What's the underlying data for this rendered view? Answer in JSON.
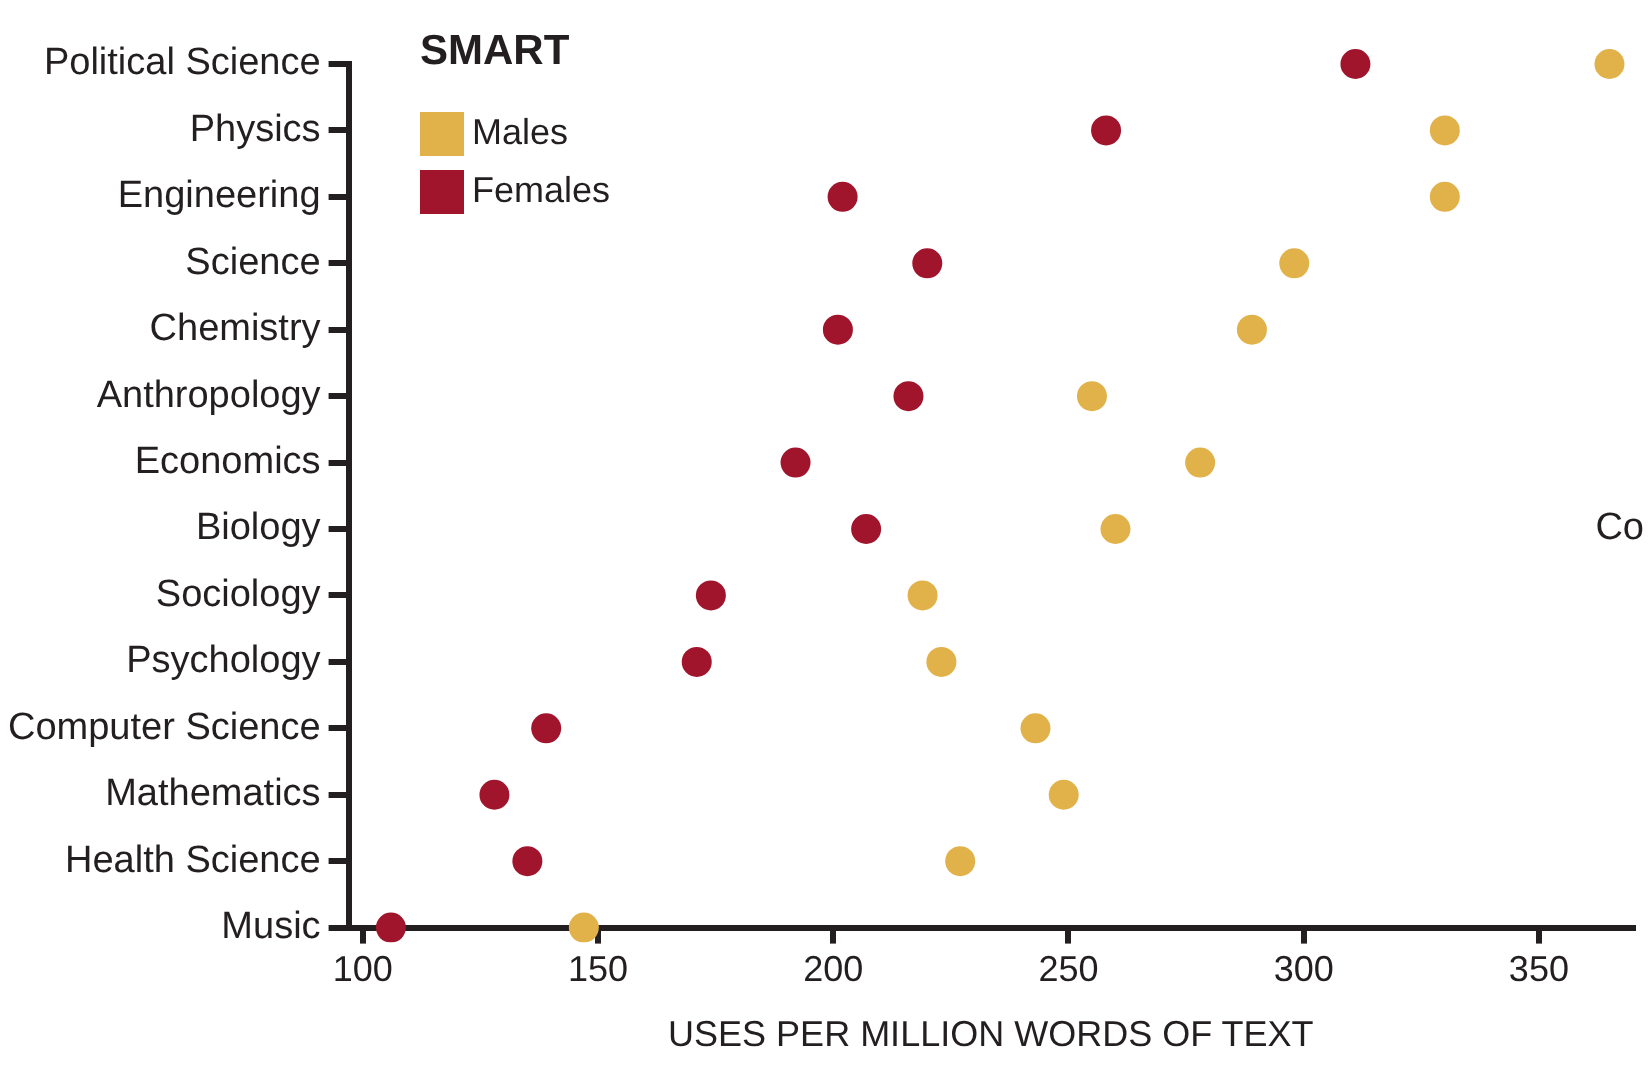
{
  "chart_data": {
    "type": "scatter",
    "legend_title": "SMART",
    "xlabel": "USES PER MILLION WORDS OF TEXT",
    "categories": [
      "Political Science",
      "Physics",
      "Engineering",
      "Science",
      "Chemistry",
      "Anthropology",
      "Economics",
      "Biology",
      "Sociology",
      "Psychology",
      "Computer Science",
      "Mathematics",
      "Health Science",
      "Music"
    ],
    "series": [
      {
        "name": "Males",
        "color": "#e2b24a",
        "values": [
          365,
          330,
          330,
          298,
          289,
          255,
          278,
          260,
          219,
          223,
          243,
          249,
          227,
          147
        ]
      },
      {
        "name": "Females",
        "color": "#a0142c",
        "values": [
          311,
          258,
          202,
          220,
          201,
          216,
          192,
          207,
          174,
          171,
          139,
          128,
          135,
          106
        ]
      }
    ],
    "orientation": "horizontal",
    "xlim": [
      97,
      370
    ],
    "xticks": [
      100,
      150,
      200,
      250,
      300,
      350
    ],
    "grid": false,
    "legend": "top left",
    "marker": "circle",
    "annotations": [
      "Co"
    ]
  }
}
